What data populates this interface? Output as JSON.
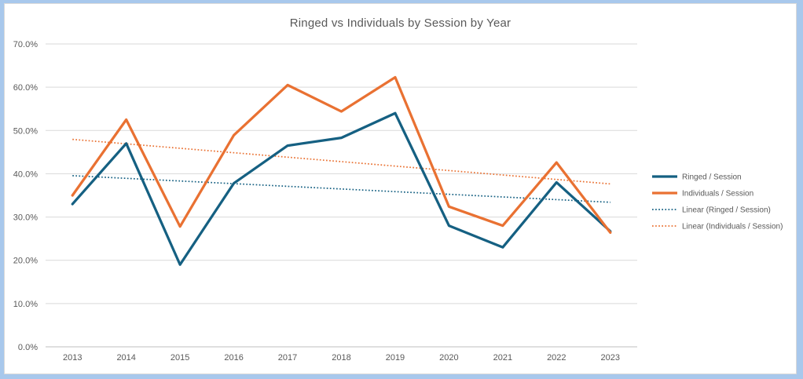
{
  "chart_data": {
    "type": "line",
    "title": "Ringed vs Individuals by Session by Year",
    "categories": [
      "2013",
      "2014",
      "2015",
      "2016",
      "2017",
      "2018",
      "2019",
      "2020",
      "2021",
      "2022",
      "2023"
    ],
    "series": [
      {
        "name": "Ringed / Session",
        "color": "#156082",
        "line_style": "solid",
        "values": [
          33.0,
          47.0,
          19.0,
          37.8,
          46.5,
          48.3,
          54.0,
          28.0,
          23.0,
          38.0,
          26.7
        ]
      },
      {
        "name": "Individuals / Session",
        "color": "#E97132",
        "line_style": "solid",
        "values": [
          35.0,
          52.5,
          27.8,
          48.9,
          60.5,
          54.4,
          62.3,
          32.4,
          28.0,
          42.6,
          26.4
        ]
      }
    ],
    "trendlines": [
      {
        "name": "Linear (Ringed / Session)",
        "series": "Ringed / Session",
        "color": "#156082",
        "line_style": "dotted"
      },
      {
        "name": "Linear (Individuals / Session)",
        "series": "Individuals / Session",
        "color": "#E97132",
        "line_style": "dotted"
      }
    ],
    "y_axis": {
      "min": 0,
      "max": 70,
      "step": 10,
      "tick_labels": [
        "0.0%",
        "10.0%",
        "20.0%",
        "30.0%",
        "40.0%",
        "50.0%",
        "60.0%",
        "70.0%"
      ]
    },
    "legend": {
      "position": "right",
      "entries": [
        "Ringed / Session",
        "Individuals / Session",
        "Linear (Ringed / Session)",
        "Linear (Individuals / Session)"
      ]
    },
    "grid": true,
    "colors": {
      "gridline": "#D9D9D9",
      "axis_line": "#BFBFBF",
      "text": "#595959",
      "frame": "#A8C8EC",
      "chart_border": "#D9D9D9",
      "background": "#FFFFFF"
    }
  }
}
